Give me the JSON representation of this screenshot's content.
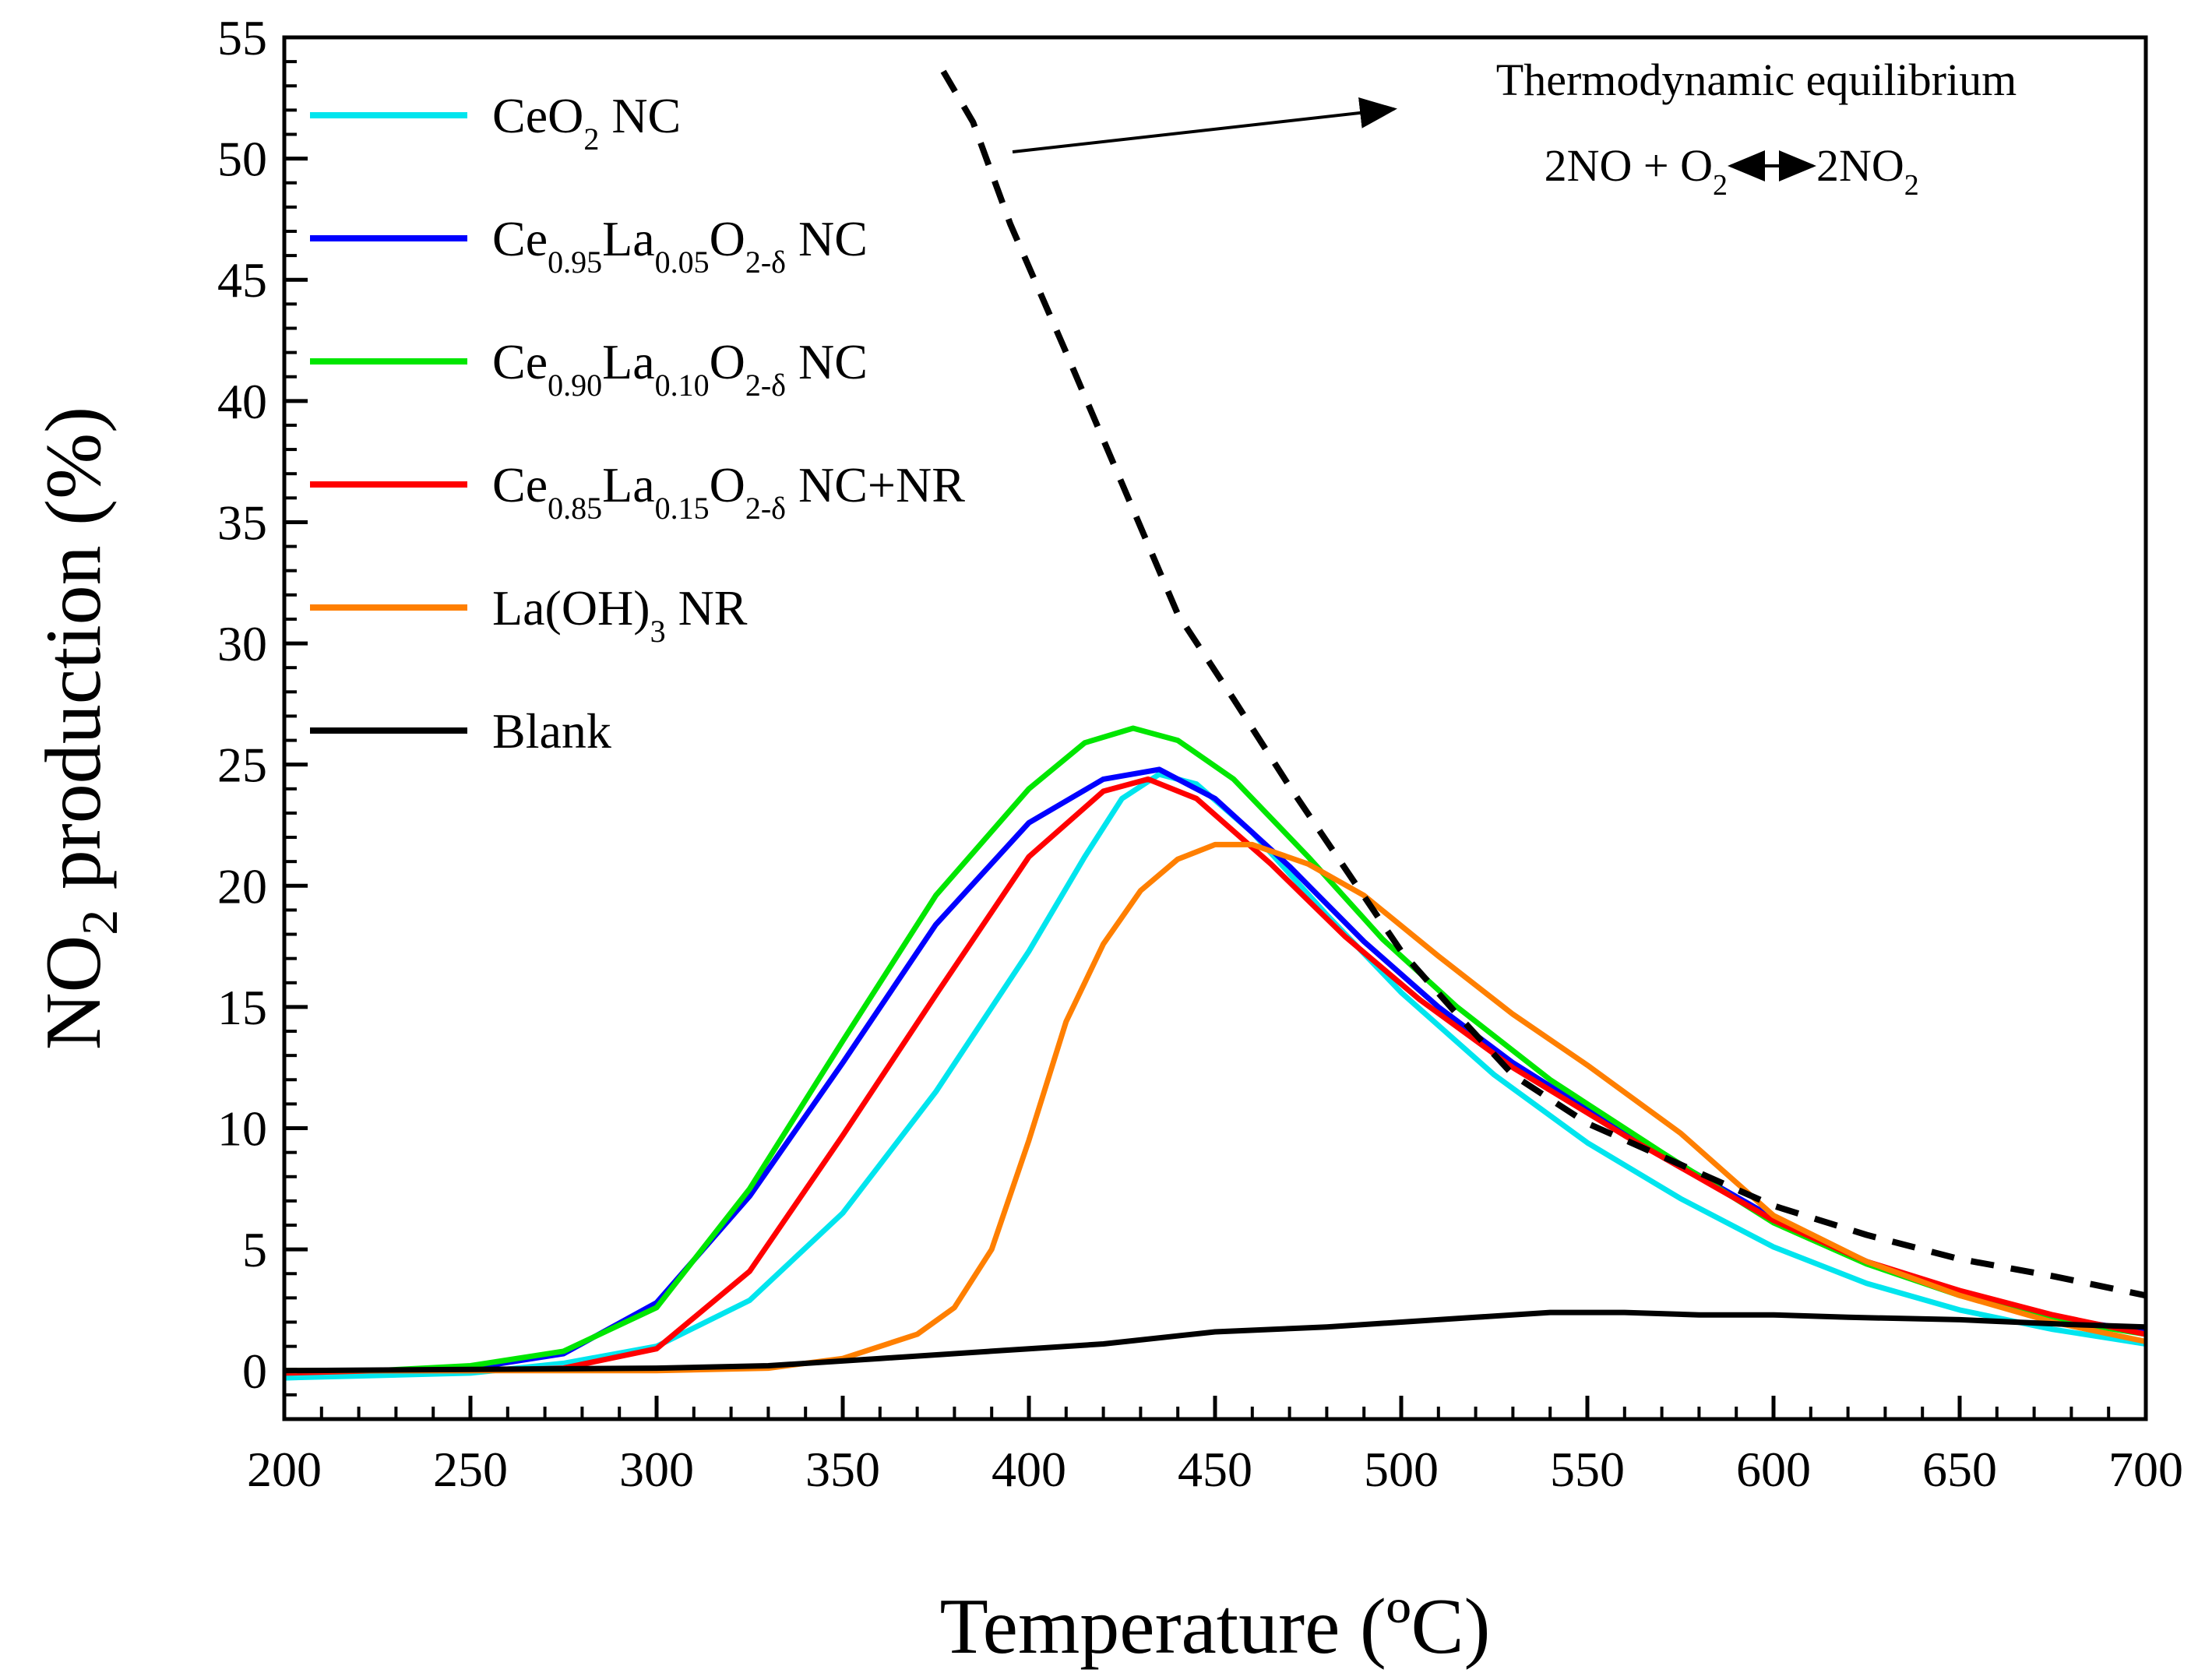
{
  "chart_data": {
    "type": "line",
    "xlabel": "Temperature (ºC)",
    "ylabel": {
      "prefix": "NO",
      "sub": "2",
      "suffix": " production (%)"
    },
    "xlim": [
      200,
      700
    ],
    "ylim": [
      -2,
      55
    ],
    "x_ticks": [
      200,
      250,
      300,
      350,
      400,
      450,
      500,
      550,
      600,
      650,
      700
    ],
    "y_ticks": [
      0,
      5,
      10,
      15,
      20,
      25,
      30,
      35,
      40,
      45,
      50,
      55
    ],
    "x_minor_step": 10,
    "y_minor_step": 1,
    "legend_position": "top-left",
    "series": [
      {
        "name": "CeO2 NC",
        "label_parts": [
          [
            "CeO",
            ""
          ],
          [
            "2",
            "sub"
          ],
          [
            " NC",
            ""
          ]
        ],
        "color": "#00e5ee",
        "style": "solid",
        "points": [
          [
            200,
            -0.3
          ],
          [
            225,
            -0.2
          ],
          [
            250,
            -0.1
          ],
          [
            275,
            0.3
          ],
          [
            300,
            1.0
          ],
          [
            325,
            2.9
          ],
          [
            350,
            6.5
          ],
          [
            375,
            11.5
          ],
          [
            400,
            17.3
          ],
          [
            415,
            21.2
          ],
          [
            425,
            23.6
          ],
          [
            435,
            24.6
          ],
          [
            445,
            24.2
          ],
          [
            460,
            22.2
          ],
          [
            480,
            18.8
          ],
          [
            500,
            15.6
          ],
          [
            525,
            12.2
          ],
          [
            550,
            9.4
          ],
          [
            575,
            7.1
          ],
          [
            600,
            5.1
          ],
          [
            625,
            3.6
          ],
          [
            650,
            2.5
          ],
          [
            675,
            1.7
          ],
          [
            700,
            1.1
          ]
        ]
      },
      {
        "name": "Ce0.95La0.05O2-δ NC",
        "label_parts": [
          [
            "Ce",
            ""
          ],
          [
            "0.95",
            "sub"
          ],
          [
            "La",
            ""
          ],
          [
            "0.05",
            "sub"
          ],
          [
            "O",
            ""
          ],
          [
            "2-δ",
            "sub"
          ],
          [
            " NC",
            ""
          ]
        ],
        "color": "#0000ff",
        "style": "solid",
        "points": [
          [
            200,
            0.0
          ],
          [
            225,
            0.0
          ],
          [
            250,
            0.1
          ],
          [
            275,
            0.7
          ],
          [
            300,
            2.8
          ],
          [
            325,
            7.2
          ],
          [
            350,
            12.7
          ],
          [
            375,
            18.4
          ],
          [
            400,
            22.6
          ],
          [
            420,
            24.4
          ],
          [
            435,
            24.8
          ],
          [
            450,
            23.6
          ],
          [
            470,
            20.8
          ],
          [
            490,
            17.7
          ],
          [
            510,
            15.0
          ],
          [
            530,
            12.7
          ],
          [
            560,
            9.8
          ],
          [
            600,
            6.3
          ],
          [
            625,
            4.5
          ],
          [
            650,
            3.2
          ],
          [
            675,
            2.2
          ],
          [
            700,
            1.6
          ]
        ]
      },
      {
        "name": "Ce0.90La0.10O2-δ NC",
        "label_parts": [
          [
            "Ce",
            ""
          ],
          [
            "0.90",
            "sub"
          ],
          [
            "La",
            ""
          ],
          [
            "0.10",
            "sub"
          ],
          [
            "O",
            ""
          ],
          [
            "2-δ",
            "sub"
          ],
          [
            " NC",
            ""
          ]
        ],
        "color": "#00e600",
        "style": "solid",
        "points": [
          [
            200,
            0.0
          ],
          [
            225,
            0.0
          ],
          [
            250,
            0.2
          ],
          [
            275,
            0.8
          ],
          [
            300,
            2.6
          ],
          [
            325,
            7.5
          ],
          [
            350,
            13.6
          ],
          [
            375,
            19.6
          ],
          [
            400,
            24.0
          ],
          [
            415,
            25.9
          ],
          [
            428,
            26.5
          ],
          [
            440,
            26.0
          ],
          [
            455,
            24.4
          ],
          [
            475,
            21.2
          ],
          [
            495,
            17.8
          ],
          [
            515,
            15.0
          ],
          [
            540,
            12.0
          ],
          [
            570,
            9.0
          ],
          [
            600,
            6.1
          ],
          [
            625,
            4.4
          ],
          [
            650,
            3.1
          ],
          [
            675,
            2.1
          ],
          [
            700,
            1.5
          ]
        ]
      },
      {
        "name": "Ce0.85La0.15O2-δ NC+NR",
        "label_parts": [
          [
            "Ce",
            ""
          ],
          [
            "0.85",
            "sub"
          ],
          [
            "La",
            ""
          ],
          [
            "0.15",
            "sub"
          ],
          [
            "O",
            ""
          ],
          [
            "2-δ",
            "sub"
          ],
          [
            " NC+NR",
            ""
          ]
        ],
        "color": "#ff0000",
        "style": "solid",
        "points": [
          [
            200,
            -0.1
          ],
          [
            225,
            0.0
          ],
          [
            250,
            0.0
          ],
          [
            275,
            0.1
          ],
          [
            300,
            0.9
          ],
          [
            325,
            4.1
          ],
          [
            350,
            9.7
          ],
          [
            375,
            15.5
          ],
          [
            400,
            21.2
          ],
          [
            420,
            23.9
          ],
          [
            432,
            24.4
          ],
          [
            445,
            23.6
          ],
          [
            465,
            20.9
          ],
          [
            485,
            17.9
          ],
          [
            505,
            15.3
          ],
          [
            530,
            12.5
          ],
          [
            560,
            9.7
          ],
          [
            600,
            6.2
          ],
          [
            625,
            4.5
          ],
          [
            650,
            3.3
          ],
          [
            675,
            2.3
          ],
          [
            700,
            1.5
          ]
        ]
      },
      {
        "name": "La(OH)3 NR",
        "label_parts": [
          [
            "La(OH)",
            ""
          ],
          [
            "3",
            "sub"
          ],
          [
            " NR",
            ""
          ]
        ],
        "color": "#ff7f00",
        "style": "solid",
        "points": [
          [
            200,
            0.0
          ],
          [
            250,
            0.0
          ],
          [
            300,
            0.0
          ],
          [
            330,
            0.1
          ],
          [
            350,
            0.5
          ],
          [
            370,
            1.5
          ],
          [
            380,
            2.6
          ],
          [
            390,
            5.0
          ],
          [
            400,
            9.5
          ],
          [
            410,
            14.4
          ],
          [
            420,
            17.6
          ],
          [
            430,
            19.8
          ],
          [
            440,
            21.1
          ],
          [
            450,
            21.7
          ],
          [
            460,
            21.7
          ],
          [
            475,
            20.9
          ],
          [
            490,
            19.6
          ],
          [
            510,
            17.1
          ],
          [
            530,
            14.7
          ],
          [
            550,
            12.6
          ],
          [
            575,
            9.8
          ],
          [
            600,
            6.4
          ],
          [
            625,
            4.5
          ],
          [
            650,
            3.1
          ],
          [
            675,
            2.0
          ],
          [
            700,
            1.2
          ]
        ]
      },
      {
        "name": "Blank",
        "label_parts": [
          [
            "Blank",
            ""
          ]
        ],
        "color": "#000000",
        "style": "solid",
        "points": [
          [
            200,
            0.0
          ],
          [
            250,
            0.05
          ],
          [
            300,
            0.1
          ],
          [
            330,
            0.2
          ],
          [
            360,
            0.5
          ],
          [
            400,
            0.9
          ],
          [
            420,
            1.1
          ],
          [
            450,
            1.6
          ],
          [
            480,
            1.8
          ],
          [
            500,
            2.0
          ],
          [
            520,
            2.2
          ],
          [
            540,
            2.4
          ],
          [
            560,
            2.4
          ],
          [
            580,
            2.3
          ],
          [
            600,
            2.3
          ],
          [
            620,
            2.2
          ],
          [
            650,
            2.1
          ],
          [
            680,
            1.9
          ],
          [
            700,
            1.8
          ]
        ]
      },
      {
        "name": "Thermodynamic equilibrium",
        "color": "#000000",
        "style": "dashed",
        "in_legend": false,
        "points": [
          [
            377,
            53.6
          ],
          [
            385,
            51.5
          ],
          [
            395,
            47.3
          ],
          [
            410,
            42.0
          ],
          [
            425,
            36.6
          ],
          [
            440,
            31.2
          ],
          [
            455,
            27.7
          ],
          [
            470,
            24.1
          ],
          [
            485,
            20.7
          ],
          [
            500,
            17.3
          ],
          [
            515,
            14.7
          ],
          [
            530,
            12.2
          ],
          [
            550,
            10.2
          ],
          [
            575,
            8.5
          ],
          [
            600,
            6.8
          ],
          [
            625,
            5.6
          ],
          [
            650,
            4.6
          ],
          [
            675,
            3.9
          ],
          [
            700,
            3.1
          ]
        ]
      }
    ],
    "annotation": {
      "title": "Thermodynamic equilibrium",
      "equation_parts": {
        "left": "2NO + O",
        "left_sub": "2",
        "right": "2NO",
        "right_sub": "2"
      }
    }
  }
}
